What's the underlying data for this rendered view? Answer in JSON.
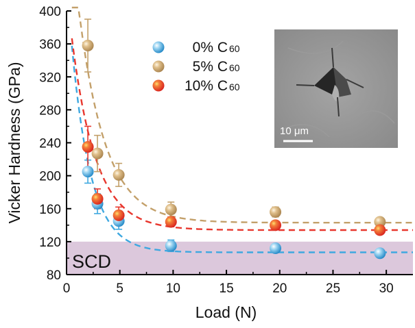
{
  "chart_data": {
    "type": "scatter",
    "title": "",
    "xlabel": "Load (N)",
    "ylabel": "Vicker Hardness (GPa)",
    "xlim": [
      0,
      32.5
    ],
    "ylim": [
      80,
      400
    ],
    "xticks": [
      0,
      5,
      10,
      15,
      20,
      25,
      30
    ],
    "yticks": [
      80,
      120,
      160,
      200,
      240,
      280,
      320,
      360,
      400
    ],
    "grid": false,
    "legend_position": "top-center",
    "series": [
      {
        "name": "0% C",
        "subscript": "60",
        "color": "#3ea8e0",
        "x": [
          2.0,
          2.9,
          4.9,
          9.8,
          19.6,
          29.4
        ],
        "y": [
          205,
          166,
          145,
          115,
          112,
          106
        ],
        "err": [
          14,
          12,
          10,
          7,
          4,
          3
        ],
        "fit": {
          "a": 107,
          "b": 330,
          "k": 0.55
        }
      },
      {
        "name": "5% C",
        "subscript": "60",
        "color": "#c3a06a",
        "x": [
          2.0,
          2.9,
          4.9,
          9.8,
          19.6,
          29.4
        ],
        "y": [
          358,
          227,
          201,
          159,
          156,
          144
        ],
        "err": [
          32,
          22,
          14,
          9,
          6,
          4
        ],
        "fit": {
          "a": 143,
          "b": 410,
          "k": 0.4
        }
      },
      {
        "name": "10% C",
        "subscript": "60",
        "color": "#e8372e",
        "x": [
          2.0,
          2.9,
          4.9,
          9.8,
          19.6,
          29.4
        ],
        "y": [
          235,
          172,
          152,
          144,
          140,
          134
        ],
        "err": [
          25,
          12,
          10,
          6,
          5,
          4
        ],
        "fit": {
          "a": 134,
          "b": 290,
          "k": 0.44
        }
      }
    ],
    "region": {
      "label": "SCD",
      "y_max": 120,
      "color": "#dcc8dc"
    },
    "inset": {
      "scale_bar_label": "10 μm"
    }
  }
}
